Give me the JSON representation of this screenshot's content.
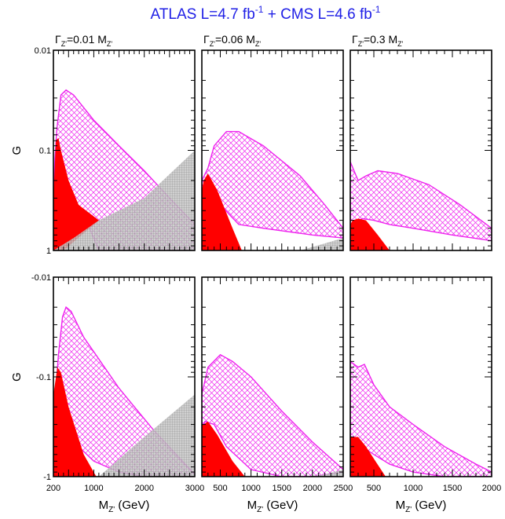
{
  "title": {
    "text": "ATLAS L=4.7 fb",
    "exp1": "-1",
    "mid": " + CMS L=4.6 fb",
    "exp2": "-1"
  },
  "colors": {
    "title": "#1f1fe6",
    "excluded": "#ff0000",
    "hatch": "#ee22ee",
    "gray": "#8a8a8a"
  },
  "chart_data": [
    {
      "type": "area",
      "row": "top",
      "column_title": {
        "sym": "Γ",
        "sub": "Z'",
        "rest": "=0.01 M",
        "sub2": "Z'"
      },
      "xlim": [
        200,
        3000
      ],
      "ylim": [
        0.01,
        1
      ],
      "yscale": "log",
      "ylabel": "G",
      "yticks": [
        "1",
        "0.1",
        "0.01"
      ],
      "regions": {
        "hatch": [
          [
            200,
            0.28
          ],
          [
            230,
            0.12
          ],
          [
            270,
            0.06
          ],
          [
            350,
            0.028
          ],
          [
            450,
            0.025
          ],
          [
            600,
            0.028
          ],
          [
            1000,
            0.05
          ],
          [
            1500,
            0.09
          ],
          [
            2000,
            0.16
          ],
          [
            2500,
            0.3
          ],
          [
            3000,
            0.55
          ],
          [
            3000,
            1
          ],
          [
            1100,
            1
          ],
          [
            850,
            0.5
          ],
          [
            450,
            0.28
          ],
          [
            300,
            0.2
          ],
          [
            200,
            0.28
          ]
        ],
        "red": [
          [
            200,
            0.8
          ],
          [
            200,
            1
          ],
          [
            400,
            1
          ],
          [
            1100,
            0.5
          ],
          [
            700,
            0.35
          ],
          [
            500,
            0.2
          ],
          [
            350,
            0.1
          ],
          [
            300,
            0.075
          ],
          [
            250,
            0.08
          ],
          [
            200,
            0.3
          ]
        ],
        "gray": [
          [
            200,
            1
          ],
          [
            3000,
            1
          ],
          [
            3000,
            0.1
          ],
          [
            2000,
            0.3
          ],
          [
            1100,
            0.5
          ],
          [
            600,
            0.75
          ],
          [
            200,
            1
          ]
        ]
      }
    },
    {
      "type": "area",
      "row": "top",
      "column_title": {
        "sym": "Γ",
        "sub": "Z'",
        "rest": "=0.06 M",
        "sub2": "Z'"
      },
      "xlim": [
        200,
        2500
      ],
      "ylim": [
        0.01,
        1
      ],
      "yscale": "log",
      "regions": {
        "hatch": [
          [
            200,
            0.2
          ],
          [
            300,
            0.15
          ],
          [
            400,
            0.09
          ],
          [
            600,
            0.065
          ],
          [
            800,
            0.065
          ],
          [
            1200,
            0.09
          ],
          [
            1800,
            0.18
          ],
          [
            2200,
            0.35
          ],
          [
            2500,
            0.6
          ],
          [
            2500,
            0.75
          ],
          [
            2000,
            0.7
          ],
          [
            1200,
            0.6
          ],
          [
            800,
            0.55
          ],
          [
            500,
            0.35
          ],
          [
            300,
            0.25
          ],
          [
            200,
            0.22
          ]
        ],
        "red": [
          [
            200,
            0.25
          ],
          [
            200,
            1
          ],
          [
            850,
            1
          ],
          [
            700,
            0.6
          ],
          [
            450,
            0.25
          ],
          [
            300,
            0.17
          ],
          [
            230,
            0.2
          ]
        ],
        "gray": [
          [
            1800,
            1
          ],
          [
            2500,
            1
          ],
          [
            2500,
            0.75
          ],
          [
            2200,
            0.85
          ]
        ]
      }
    },
    {
      "type": "area",
      "row": "top",
      "column_title": {
        "sym": "Γ",
        "sub": "Z'",
        "rest": "=0.3 M",
        "sub2": "Z'"
      },
      "xlim": [
        200,
        2000
      ],
      "ylim": [
        0.01,
        1
      ],
      "yscale": "log",
      "regions": {
        "hatch": [
          [
            200,
            0.13
          ],
          [
            300,
            0.2
          ],
          [
            400,
            0.18
          ],
          [
            550,
            0.16
          ],
          [
            800,
            0.17
          ],
          [
            1200,
            0.22
          ],
          [
            1600,
            0.35
          ],
          [
            2000,
            0.6
          ],
          [
            2000,
            0.8
          ],
          [
            1500,
            0.7
          ],
          [
            1000,
            0.6
          ],
          [
            700,
            0.55
          ],
          [
            500,
            0.5
          ],
          [
            350,
            0.48
          ],
          [
            250,
            0.55
          ],
          [
            200,
            0.65
          ]
        ],
        "red": [
          [
            200,
            0.55
          ],
          [
            200,
            1
          ],
          [
            700,
            1
          ],
          [
            550,
            0.7
          ],
          [
            400,
            0.5
          ],
          [
            300,
            0.48
          ],
          [
            230,
            0.5
          ]
        ]
      }
    },
    {
      "type": "area",
      "row": "bottom",
      "xlabel": {
        "sym": "M",
        "sub": "Z'",
        "rest": " (GeV)"
      },
      "xlim": [
        200,
        3000
      ],
      "ylim": [
        -0.01,
        -1
      ],
      "yscale": "log",
      "ylabel": "G",
      "yticks": [
        "-0.01",
        "-0.1",
        "-1"
      ],
      "xticks": [
        "200",
        "1000",
        "2000",
        "3000"
      ],
      "regions": {
        "hatch": [
          [
            200,
            -0.28
          ],
          [
            300,
            -0.06
          ],
          [
            380,
            -0.025
          ],
          [
            450,
            -0.02
          ],
          [
            550,
            -0.022
          ],
          [
            800,
            -0.04
          ],
          [
            1500,
            -0.13
          ],
          [
            2200,
            -0.35
          ],
          [
            3000,
            -0.95
          ],
          [
            3000,
            -1
          ],
          [
            2000,
            -1
          ],
          [
            1500,
            -0.9
          ],
          [
            1000,
            -0.7
          ],
          [
            700,
            -0.5
          ],
          [
            450,
            -0.35
          ],
          [
            300,
            -0.3
          ],
          [
            200,
            -0.28
          ]
        ],
        "red": [
          [
            200,
            -0.22
          ],
          [
            200,
            -1
          ],
          [
            1050,
            -1
          ],
          [
            800,
            -0.6
          ],
          [
            500,
            -0.2
          ],
          [
            350,
            -0.09
          ],
          [
            280,
            -0.08
          ],
          [
            200,
            -0.15
          ]
        ],
        "gray": [
          [
            1100,
            -1
          ],
          [
            3000,
            -1
          ],
          [
            3000,
            -0.15
          ],
          [
            2000,
            -0.4
          ],
          [
            1100,
            -1
          ]
        ]
      }
    },
    {
      "type": "area",
      "row": "bottom",
      "xlabel": {
        "sym": "M",
        "sub": "Z'",
        "rest": " (GeV)"
      },
      "xlim": [
        200,
        2500
      ],
      "ylim": [
        -0.01,
        -1
      ],
      "yscale": "log",
      "xticks": [
        "500",
        "1000",
        "1500",
        "2000",
        "2500"
      ],
      "regions": {
        "hatch": [
          [
            200,
            -0.15
          ],
          [
            300,
            -0.08
          ],
          [
            500,
            -0.06
          ],
          [
            700,
            -0.07
          ],
          [
            1000,
            -0.1
          ],
          [
            1500,
            -0.22
          ],
          [
            2000,
            -0.45
          ],
          [
            2500,
            -0.85
          ],
          [
            2500,
            -0.9
          ],
          [
            2000,
            -1
          ],
          [
            1500,
            -1
          ],
          [
            1000,
            -0.85
          ],
          [
            600,
            -0.5
          ],
          [
            400,
            -0.3
          ],
          [
            250,
            -0.28
          ],
          [
            200,
            -0.35
          ]
        ],
        "red": [
          [
            200,
            -0.3
          ],
          [
            200,
            -1
          ],
          [
            900,
            -1
          ],
          [
            700,
            -0.7
          ],
          [
            450,
            -0.38
          ],
          [
            300,
            -0.28
          ],
          [
            230,
            -0.3
          ]
        ],
        "gray": [
          [
            1900,
            -1
          ],
          [
            2500,
            -1
          ],
          [
            2500,
            -0.85
          ],
          [
            2200,
            -0.95
          ]
        ]
      }
    },
    {
      "type": "area",
      "row": "bottom",
      "xlabel": {
        "sym": "M",
        "sub": "Z'",
        "rest": " (GeV)"
      },
      "xlim": [
        200,
        2000
      ],
      "ylim": [
        -0.01,
        -1
      ],
      "yscale": "log",
      "xticks": [
        "500",
        "1000",
        "1500",
        "2000"
      ],
      "regions": {
        "hatch": [
          [
            200,
            -0.07
          ],
          [
            300,
            -0.08
          ],
          [
            380,
            -0.075
          ],
          [
            500,
            -0.12
          ],
          [
            700,
            -0.2
          ],
          [
            1000,
            -0.3
          ],
          [
            1400,
            -0.5
          ],
          [
            1800,
            -0.75
          ],
          [
            2000,
            -0.9
          ],
          [
            2000,
            -1
          ],
          [
            1400,
            -1
          ],
          [
            1000,
            -0.9
          ],
          [
            700,
            -0.75
          ],
          [
            500,
            -0.6
          ],
          [
            350,
            -0.5
          ],
          [
            250,
            -0.45
          ],
          [
            200,
            -0.5
          ]
        ],
        "red": [
          [
            200,
            -0.4
          ],
          [
            200,
            -1
          ],
          [
            650,
            -1
          ],
          [
            520,
            -0.7
          ],
          [
            400,
            -0.5
          ],
          [
            300,
            -0.4
          ],
          [
            230,
            -0.4
          ]
        ]
      }
    }
  ]
}
